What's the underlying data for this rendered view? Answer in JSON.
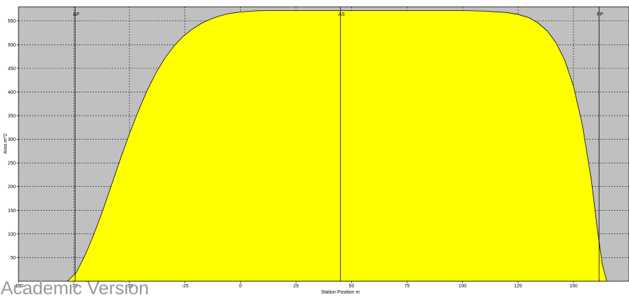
{
  "watermark": "Academic Version",
  "colors": {
    "plot_background": "#c0c0c0",
    "fill": "#ffff00",
    "outline": "#000000",
    "grid": "#000000",
    "watermark": "#9a9a9a"
  },
  "chart_data": {
    "type": "area",
    "title": "",
    "xlabel": "Station Position  m",
    "ylabel": "Area  m^2",
    "xlim": [
      -100,
      175
    ],
    "ylim": [
      0,
      580
    ],
    "grid": true,
    "x_ticks": [
      -100,
      -75,
      -50,
      -25,
      0,
      25,
      50,
      75,
      100,
      125,
      150
    ],
    "x_tick_labels": [
      "-100",
      "-75",
      "-50",
      "-25",
      "0",
      "25",
      "50",
      "75",
      "100",
      "125",
      "150"
    ],
    "y_ticks": [
      50,
      100,
      150,
      200,
      250,
      300,
      350,
      400,
      450,
      500,
      550
    ],
    "y_tick_labels": [
      "50",
      "100",
      "150",
      "200",
      "250",
      "300",
      "350",
      "400",
      "450",
      "500",
      "550"
    ],
    "markers": [
      {
        "label": "AP",
        "x": -74.5
      },
      {
        "label": "AS",
        "x": 45
      },
      {
        "label": "FP",
        "x": 161.5
      }
    ],
    "series": [
      {
        "x": [
          -78,
          -74,
          -70,
          -66,
          -62,
          -58,
          -54,
          -50,
          -46,
          -42,
          -38,
          -34,
          -30,
          -26,
          -22,
          -18,
          -14,
          -10,
          -6,
          -2,
          0,
          5,
          10,
          20,
          30,
          45,
          60,
          80,
          100,
          110,
          120,
          125,
          130,
          134,
          138,
          142,
          146,
          150,
          154,
          158,
          161,
          163,
          165
        ],
        "values": [
          0,
          18,
          55,
          100,
          150,
          205,
          260,
          312,
          360,
          404,
          441,
          472,
          497,
          517,
          532,
          544,
          553,
          560,
          565,
          568,
          569,
          571,
          572,
          572,
          572,
          572,
          572,
          572,
          572,
          571,
          568,
          564,
          557,
          546,
          530,
          505,
          468,
          412,
          330,
          215,
          100,
          35,
          0
        ]
      }
    ]
  }
}
